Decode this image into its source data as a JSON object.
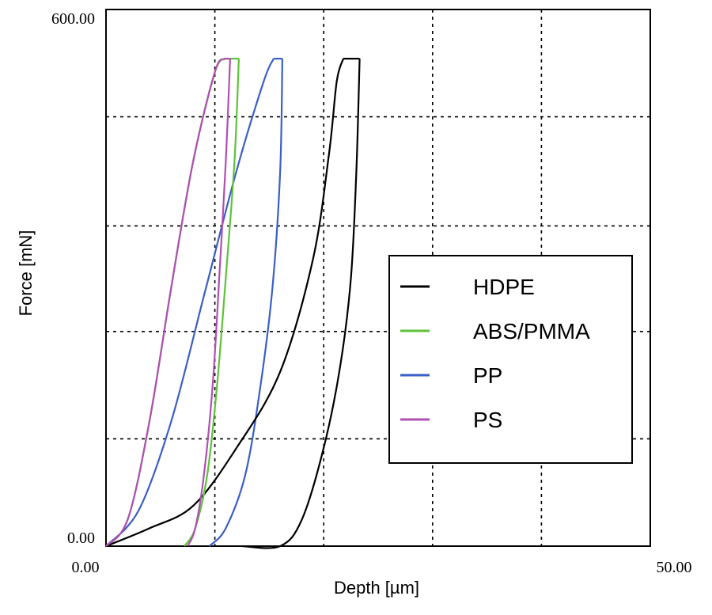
{
  "chart_data": {
    "type": "line",
    "xlabel": "Depth [µm]",
    "ylabel": "Force [mN]",
    "xlim": [
      0,
      50
    ],
    "ylim": [
      0,
      600
    ],
    "x_tick_labels": [
      "0.00",
      "50.00"
    ],
    "y_tick_labels": [
      "0.00",
      "600.00"
    ],
    "grid": true,
    "legend_position": "right-middle",
    "colors": {
      "HDPE": "#000000",
      "ABS/PMMA": "#5ec23a",
      "PP": "#3a5fc6",
      "PS": "#b04fb3"
    },
    "series": [
      {
        "name": "HDPE",
        "loading": [
          [
            0,
            0
          ],
          [
            4,
            20
          ],
          [
            8,
            45
          ],
          [
            12,
            110
          ],
          [
            16,
            195
          ],
          [
            19,
            320
          ],
          [
            20.5,
            440
          ],
          [
            21.2,
            520
          ],
          [
            21.8,
            545
          ]
        ],
        "hold": [
          [
            21.8,
            545
          ],
          [
            23.3,
            545
          ]
        ],
        "unloading": [
          [
            23.3,
            545
          ],
          [
            23.0,
            420
          ],
          [
            22.5,
            300
          ],
          [
            21.5,
            200
          ],
          [
            20.0,
            110
          ],
          [
            18.0,
            30
          ],
          [
            16.0,
            0
          ],
          [
            12.5,
            0
          ]
        ]
      },
      {
        "name": "ABS/PMMA",
        "loading": [
          [
            0,
            0
          ],
          [
            2,
            30
          ],
          [
            4,
            140
          ],
          [
            6,
            290
          ],
          [
            8,
            430
          ],
          [
            10,
            530
          ],
          [
            11.0,
            545
          ]
        ],
        "hold": [
          [
            11.0,
            545
          ],
          [
            12.2,
            545
          ]
        ],
        "unloading": [
          [
            12.2,
            545
          ],
          [
            11.8,
            430
          ],
          [
            11.0,
            300
          ],
          [
            10.2,
            180
          ],
          [
            9.3,
            80
          ],
          [
            8.2,
            20
          ],
          [
            7.2,
            0
          ]
        ]
      },
      {
        "name": "PP",
        "loading": [
          [
            0,
            0
          ],
          [
            3,
            40
          ],
          [
            6,
            140
          ],
          [
            9,
            280
          ],
          [
            12,
            420
          ],
          [
            14.5,
            520
          ],
          [
            15.4,
            545
          ]
        ],
        "hold": [
          [
            15.4,
            545
          ],
          [
            16.2,
            545
          ]
        ],
        "unloading": [
          [
            16.2,
            545
          ],
          [
            16.0,
            420
          ],
          [
            15.3,
            290
          ],
          [
            14.2,
            180
          ],
          [
            12.8,
            80
          ],
          [
            11.0,
            20
          ],
          [
            9.5,
            0
          ]
        ]
      },
      {
        "name": "PS",
        "loading": [
          [
            0,
            0
          ],
          [
            2,
            30
          ],
          [
            4,
            140
          ],
          [
            6,
            290
          ],
          [
            8,
            430
          ],
          [
            10,
            530
          ],
          [
            10.8,
            545
          ]
        ],
        "hold": [
          [
            10.8,
            545
          ],
          [
            11.4,
            545
          ]
        ],
        "unloading": [
          [
            11.4,
            545
          ],
          [
            11.0,
            430
          ],
          [
            10.4,
            300
          ],
          [
            9.8,
            180
          ],
          [
            9.0,
            80
          ],
          [
            8.2,
            20
          ],
          [
            7.5,
            0
          ]
        ]
      }
    ]
  }
}
